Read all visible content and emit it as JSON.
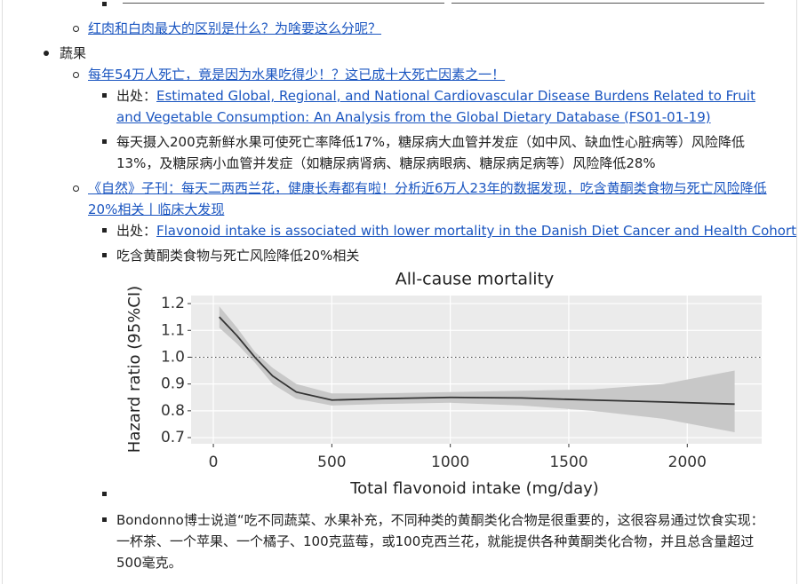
{
  "top_link": "红肉和白肉最大的区别是什么？为啥要这么分呢？",
  "section": {
    "label": "蔬果",
    "items": [
      {
        "link": "每年54万人死亡，竟是因为水果吃得少！？这已成十大死亡因素之一！",
        "sub": [
          {
            "prefix": "出处：",
            "link": "Estimated Global, Regional, and National Cardiovascular Disease Burdens Related to Fruit and Vegetable Consumption: An Analysis from the Global Dietary Database (FS01-01-19)"
          },
          {
            "text": "每天摄入200克新鲜水果可使死亡率降低17%，糖尿病大血管并发症（如中风、缺血性心脏病等）风险降低13%，及糖尿病小血管并发症（如糖尿病肾病、糖尿病眼病、糖尿病足病等）风险降低28%"
          }
        ]
      },
      {
        "link": "《自然》子刊：每天二两西兰花，健康长寿都有啦！分析近6万人23年的数据发现，吃含黄酮类食物与死亡风险降低20%相关丨临床大发现",
        "sub": [
          {
            "prefix": "出处：",
            "link": "Flavonoid intake is associated with lower mortality in the Danish Diet Cancer and Health Cohort"
          },
          {
            "text": "吃含黄酮类食物与死亡风险降低20%相关"
          },
          {
            "text": "Bondonno博士说道“吃不同蔬菜、水果补充，不同种类的黄酮类化合物是很重要的，这很容易通过饮食实现：一杯茶、一个苹果、一个橘子、100克蓝莓，或100克西兰花，就能提供各种黄酮类化合物，并且总含量超过500毫克。"
          }
        ]
      }
    ]
  },
  "chart_data": {
    "type": "line",
    "title": "All-cause mortality",
    "x_label": "Total flavonoid intake (mg/day)",
    "y_label": "Hazard ratio (95%CI)",
    "x": [
      25,
      100,
      175,
      250,
      350,
      500,
      700,
      1000,
      1300,
      1600,
      1900,
      2200
    ],
    "series": [
      {
        "color": "#333333",
        "band_color": "#c8c8c8",
        "values": [
          1.15,
          1.08,
          1.0,
          0.93,
          0.87,
          0.84,
          0.845,
          0.85,
          0.848,
          0.84,
          0.833,
          0.825
        ],
        "lower": [
          1.11,
          1.05,
          0.98,
          0.9,
          0.845,
          0.82,
          0.825,
          0.83,
          0.82,
          0.8,
          0.77,
          0.72
        ],
        "upper": [
          1.19,
          1.11,
          1.02,
          0.96,
          0.9,
          0.865,
          0.865,
          0.87,
          0.875,
          0.88,
          0.9,
          0.95
        ]
      }
    ],
    "xlim": [
      -94,
      2314
    ],
    "ylim": [
      0.677,
      1.23
    ],
    "xticks": [
      0,
      500,
      1000,
      1500,
      2000
    ],
    "yticks": [
      0.7,
      0.8,
      0.9,
      {
        "value": 1,
        "label": "1.0"
      },
      1.1,
      1.2
    ],
    "hline": 1,
    "grid": true
  }
}
